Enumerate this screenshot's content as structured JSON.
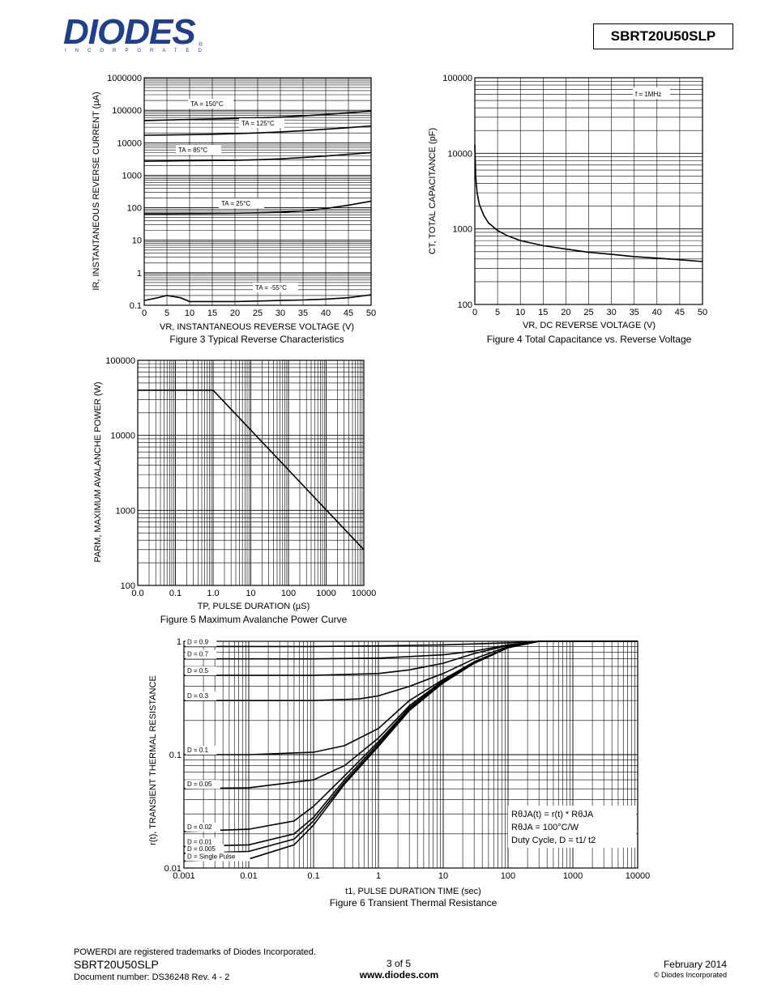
{
  "header": {
    "logo_text": "DIODES",
    "logo_sub": "INCORPORATED",
    "logo_reg": "®",
    "part_number": "SBRT20U50SLP"
  },
  "chart_data": [
    {
      "type": "line",
      "title": "Figure 3  Typical Reverse Characteristics",
      "xlabel": "VR, INSTANTANEOUS REVERSE VOLTAGE (V)",
      "ylabel": "IR, INSTANTANEOUS REVERSE CURRENT (µA)",
      "x_ticks": [
        "0",
        "5",
        "10",
        "15",
        "20",
        "25",
        "30",
        "35",
        "40",
        "45",
        "50"
      ],
      "y_ticks": [
        "0.1",
        "1",
        "10",
        "100",
        "1000",
        "10000",
        "100000",
        "1000000"
      ],
      "xlim": [
        0,
        50
      ],
      "ylim": [
        0.1,
        1000000
      ],
      "yscale": "log",
      "series": [
        {
          "name": "TA = 150°C",
          "x": [
            0,
            5,
            10,
            15,
            20,
            25,
            30,
            35,
            40,
            45,
            50
          ],
          "y": [
            48000,
            50000,
            52000,
            54000,
            56000,
            58000,
            62000,
            67000,
            74000,
            83000,
            95000
          ]
        },
        {
          "name": "TA = 125°C",
          "x": [
            0,
            5,
            10,
            15,
            20,
            25,
            30,
            35,
            40,
            45,
            50
          ],
          "y": [
            17000,
            17300,
            17700,
            18200,
            19000,
            20000,
            21500,
            23500,
            26000,
            29000,
            33000
          ]
        },
        {
          "name": "TA = 85°C",
          "x": [
            0,
            5,
            10,
            15,
            20,
            25,
            30,
            35,
            40,
            45,
            50
          ],
          "y": [
            2700,
            2750,
            2800,
            2850,
            2900,
            3000,
            3200,
            3500,
            3900,
            4400,
            5000
          ]
        },
        {
          "name": "TA = 25°C",
          "x": [
            0,
            5,
            10,
            15,
            20,
            25,
            30,
            35,
            40,
            45,
            50
          ],
          "y": [
            65,
            65,
            66,
            67,
            68,
            70,
            73,
            80,
            95,
            120,
            160
          ]
        },
        {
          "name": "TA = -55°C",
          "x": [
            0,
            3,
            5,
            8,
            10,
            15,
            20,
            25,
            30,
            35,
            40,
            45,
            50
          ],
          "y": [
            0.14,
            0.17,
            0.2,
            0.17,
            0.13,
            0.13,
            0.13,
            0.135,
            0.14,
            0.145,
            0.155,
            0.17,
            0.21
          ]
        }
      ]
    },
    {
      "type": "line",
      "title": "Figure 4  Total Capacitance vs. Reverse Voltage",
      "xlabel": "VR, DC REVERSE VOLTAGE (V)",
      "ylabel": "CT, TOTAL CAPACITANCE (pF)",
      "annotation": "f = 1MHz",
      "x_ticks": [
        "0",
        "5",
        "10",
        "15",
        "20",
        "25",
        "30",
        "35",
        "40",
        "45",
        "50"
      ],
      "y_ticks": [
        "100",
        "1000",
        "10000",
        "100000"
      ],
      "xlim": [
        0,
        50
      ],
      "ylim": [
        100,
        100000
      ],
      "yscale": "log",
      "series": [
        {
          "x": [
            0,
            0.2,
            0.5,
            1,
            2,
            3,
            5,
            7,
            10,
            15,
            20,
            25,
            30,
            35,
            40,
            45,
            50
          ],
          "y": [
            13000,
            5000,
            3000,
            2100,
            1500,
            1200,
            950,
            820,
            700,
            600,
            540,
            490,
            460,
            430,
            410,
            390,
            370
          ]
        }
      ]
    },
    {
      "type": "line",
      "title": "Figure 5  Maximum Avalanche Power Curve",
      "xlabel": "TP, PULSE DURATION (µS)",
      "ylabel": "PARM, MAXIMUM AVALANCHE POWER (W)",
      "x_ticks": [
        "0.0",
        "0.1",
        "1.0",
        "10",
        "100",
        "1000",
        "10000"
      ],
      "y_ticks": [
        "100",
        "1000",
        "10000",
        "100000"
      ],
      "xscale": "log",
      "yscale": "log",
      "xlim": [
        0.01,
        10000
      ],
      "ylim": [
        100,
        100000
      ],
      "series": [
        {
          "x": [
            0.01,
            1,
            10000
          ],
          "y": [
            40000,
            40000,
            300
          ]
        }
      ]
    },
    {
      "type": "line",
      "title": "Figure 6  Transient Thermal Resistance",
      "xlabel": "t1, PULSE DURATION TIME (sec)",
      "ylabel": "r(t), TRANSIENT THERMAL RESISTANCE",
      "x_ticks": [
        "0.001",
        "0.01",
        "0.1",
        "1",
        "10",
        "100",
        "1000",
        "10000"
      ],
      "y_ticks": [
        "0.01",
        "0.1",
        "1"
      ],
      "xscale": "log",
      "yscale": "log",
      "xlim": [
        0.001,
        10000
      ],
      "ylim": [
        0.01,
        1
      ],
      "notes": [
        "RθJA(t) = r(t) * RθJA",
        "RθJA = 100°C/W",
        "Duty Cycle, D = t1/ t2"
      ],
      "series": [
        {
          "name": "D = 0.9",
          "x": [
            0.001,
            0.1,
            1,
            10,
            100,
            300,
            10000
          ],
          "y": [
            0.9,
            0.9,
            0.91,
            0.93,
            0.97,
            1,
            1
          ]
        },
        {
          "name": "D = 0.7",
          "x": [
            0.001,
            0.1,
            1,
            10,
            30,
            100,
            300,
            10000
          ],
          "y": [
            0.7,
            0.7,
            0.71,
            0.76,
            0.82,
            0.93,
            1,
            1
          ]
        },
        {
          "name": "D = 0.5",
          "x": [
            0.001,
            0.1,
            1,
            3,
            10,
            30,
            100,
            300,
            10000
          ],
          "y": [
            0.5,
            0.5,
            0.52,
            0.56,
            0.64,
            0.78,
            0.92,
            1,
            1
          ]
        },
        {
          "name": "D = 0.3",
          "x": [
            0.001,
            0.1,
            0.5,
            1,
            3,
            10,
            30,
            100,
            300,
            10000
          ],
          "y": [
            0.3,
            0.3,
            0.31,
            0.33,
            0.4,
            0.52,
            0.7,
            0.9,
            1,
            1
          ]
        },
        {
          "name": "D = 0.1",
          "x": [
            0.001,
            0.01,
            0.1,
            0.3,
            1,
            3,
            10,
            30,
            100,
            300,
            10000
          ],
          "y": [
            0.1,
            0.1,
            0.105,
            0.12,
            0.17,
            0.3,
            0.46,
            0.66,
            0.88,
            1,
            1
          ]
        },
        {
          "name": "D = 0.05",
          "x": [
            0.001,
            0.01,
            0.1,
            0.3,
            1,
            3,
            10,
            30,
            100,
            300,
            10000
          ],
          "y": [
            0.05,
            0.051,
            0.06,
            0.08,
            0.14,
            0.27,
            0.45,
            0.65,
            0.88,
            1,
            1
          ]
        },
        {
          "name": "D = 0.02",
          "x": [
            0.001,
            0.01,
            0.05,
            0.1,
            0.3,
            1,
            3,
            10,
            30,
            100,
            300,
            10000
          ],
          "y": [
            0.021,
            0.022,
            0.026,
            0.035,
            0.065,
            0.13,
            0.26,
            0.44,
            0.65,
            0.88,
            1,
            1
          ]
        },
        {
          "name": "D = 0.01",
          "x": [
            0.001,
            0.01,
            0.05,
            0.1,
            0.3,
            1,
            3,
            10,
            30,
            100,
            300,
            10000
          ],
          "y": [
            0.0155,
            0.016,
            0.02,
            0.028,
            0.06,
            0.125,
            0.255,
            0.44,
            0.64,
            0.88,
            1,
            1
          ]
        },
        {
          "name": "D = 0.005",
          "x": [
            0.001,
            0.01,
            0.05,
            0.1,
            0.3,
            1,
            3,
            10,
            30,
            100,
            300,
            10000
          ],
          "y": [
            0.0135,
            0.014,
            0.018,
            0.026,
            0.057,
            0.12,
            0.25,
            0.43,
            0.64,
            0.88,
            1,
            1
          ]
        },
        {
          "name": "D = Single Pulse",
          "x": [
            0.001,
            0.01,
            0.05,
            0.1,
            0.3,
            1,
            3,
            10,
            30,
            100,
            300,
            10000
          ],
          "y": [
            0.0115,
            0.012,
            0.016,
            0.024,
            0.055,
            0.118,
            0.245,
            0.43,
            0.64,
            0.88,
            1,
            1
          ]
        }
      ]
    }
  ],
  "footer": {
    "trademark": "POWERDI are registered trademarks of Diodes Incorporated.",
    "part": "SBRT20U50SLP",
    "doc": "Document number: DS36248  Rev. 4 - 2",
    "page": "3 of 5",
    "website": "www.diodes.com",
    "date": "February 2014",
    "copyright": "© Diodes Incorporated"
  }
}
